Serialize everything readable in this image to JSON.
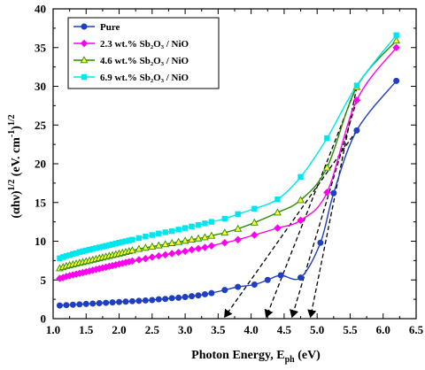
{
  "chart_data": {
    "type": "line",
    "xlabel": "Photon Energy, E",
    "xlabel_sub": "ph",
    "xlabel_unit": " (eV)",
    "ylabel": "(αhν)",
    "ylabel_sup": "1/2",
    "ylabel_unit": " (eV. cm",
    "ylabel_unit_sup": "-1",
    "ylabel_close": ")",
    "ylabel_close_sup": "1/2",
    "xlim": [
      1.0,
      6.5
    ],
    "ylim": [
      0,
      40
    ],
    "xticks": [
      "1.0",
      "1.5",
      "2.0",
      "2.5",
      "3.0",
      "3.5",
      "4.0",
      "4.5",
      "5.0",
      "5.5",
      "6.0",
      "6.5"
    ],
    "yticks": [
      "0",
      "5",
      "10",
      "15",
      "20",
      "25",
      "30",
      "35",
      "40"
    ],
    "legend_position": "top-left",
    "series": [
      {
        "name": "Pure",
        "color": "#1f3fbf",
        "marker": "circle",
        "x": [
          1.1,
          1.2,
          1.3,
          1.4,
          1.5,
          1.6,
          1.7,
          1.8,
          1.9,
          2.0,
          2.1,
          2.2,
          2.3,
          2.4,
          2.5,
          2.6,
          2.7,
          2.8,
          2.9,
          3.0,
          3.1,
          3.2,
          3.3,
          3.4,
          3.6,
          3.8,
          4.05,
          4.25,
          4.45,
          4.75,
          5.05,
          5.25,
          5.6,
          6.2
        ],
        "y": [
          1.7,
          1.75,
          1.8,
          1.85,
          1.9,
          1.95,
          2.0,
          2.05,
          2.1,
          2.15,
          2.2,
          2.25,
          2.3,
          2.35,
          2.4,
          2.5,
          2.55,
          2.65,
          2.7,
          2.8,
          2.9,
          3.0,
          3.15,
          3.3,
          3.7,
          4.1,
          4.4,
          5.0,
          5.6,
          5.3,
          9.8,
          16.2,
          24.3,
          30.7
        ]
      },
      {
        "name": "2.3 wt.% Sb₂O₃ / NiO",
        "color": "#ff00ee",
        "marker": "diamond",
        "x": [
          1.1,
          1.15,
          1.2,
          1.25,
          1.3,
          1.35,
          1.4,
          1.45,
          1.5,
          1.55,
          1.6,
          1.65,
          1.7,
          1.75,
          1.8,
          1.85,
          1.9,
          1.95,
          2.0,
          2.05,
          2.1,
          2.15,
          2.2,
          2.3,
          2.4,
          2.5,
          2.6,
          2.7,
          2.8,
          2.9,
          3.0,
          3.1,
          3.2,
          3.3,
          3.4,
          3.6,
          3.8,
          4.05,
          4.4,
          4.75,
          5.15,
          5.6,
          6.2
        ],
        "y": [
          5.2,
          5.3,
          5.45,
          5.55,
          5.65,
          5.75,
          5.85,
          5.95,
          6.05,
          6.15,
          6.25,
          6.35,
          6.45,
          6.55,
          6.65,
          6.75,
          6.85,
          6.95,
          7.05,
          7.15,
          7.25,
          7.35,
          7.45,
          7.6,
          7.75,
          7.95,
          8.1,
          8.25,
          8.4,
          8.55,
          8.7,
          8.9,
          9.05,
          9.2,
          9.4,
          9.8,
          10.2,
          10.8,
          11.7,
          12.7,
          16.3,
          28.2,
          35.0
        ]
      },
      {
        "name": "4.6 wt.% Sb₂O₃ / NiO",
        "color": "#2a8a00",
        "marker": "triangle",
        "marker_fill": "#ffff33",
        "x": [
          1.1,
          1.15,
          1.2,
          1.25,
          1.3,
          1.35,
          1.4,
          1.45,
          1.5,
          1.55,
          1.6,
          1.65,
          1.7,
          1.75,
          1.8,
          1.85,
          1.9,
          1.95,
          2.0,
          2.05,
          2.1,
          2.15,
          2.2,
          2.3,
          2.4,
          2.5,
          2.6,
          2.7,
          2.8,
          2.9,
          3.0,
          3.1,
          3.2,
          3.3,
          3.4,
          3.6,
          3.8,
          4.05,
          4.4,
          4.75,
          5.15,
          5.6,
          6.2
        ],
        "y": [
          6.5,
          6.65,
          6.8,
          6.9,
          7.0,
          7.1,
          7.2,
          7.3,
          7.4,
          7.5,
          7.6,
          7.7,
          7.8,
          7.9,
          8.0,
          8.1,
          8.2,
          8.3,
          8.4,
          8.5,
          8.6,
          8.7,
          8.8,
          9.0,
          9.15,
          9.3,
          9.45,
          9.6,
          9.75,
          9.9,
          10.05,
          10.2,
          10.35,
          10.5,
          10.7,
          11.1,
          11.6,
          12.4,
          13.7,
          15.3,
          19.5,
          29.9,
          35.9
        ]
      },
      {
        "name": "6.9 wt.% Sb₂O₃ / NiO",
        "color": "#00e5ee",
        "marker": "square",
        "x": [
          1.1,
          1.15,
          1.2,
          1.25,
          1.3,
          1.35,
          1.4,
          1.45,
          1.5,
          1.55,
          1.6,
          1.65,
          1.7,
          1.75,
          1.8,
          1.85,
          1.9,
          1.95,
          2.0,
          2.05,
          2.1,
          2.15,
          2.2,
          2.3,
          2.4,
          2.5,
          2.6,
          2.7,
          2.8,
          2.9,
          3.0,
          3.1,
          3.2,
          3.3,
          3.4,
          3.6,
          3.8,
          4.05,
          4.4,
          4.75,
          5.15,
          5.6,
          6.2
        ],
        "y": [
          7.8,
          7.95,
          8.1,
          8.2,
          8.35,
          8.45,
          8.6,
          8.7,
          8.8,
          8.9,
          9.0,
          9.1,
          9.2,
          9.3,
          9.4,
          9.5,
          9.6,
          9.7,
          9.8,
          9.9,
          10.0,
          10.1,
          10.2,
          10.4,
          10.6,
          10.8,
          11.0,
          11.15,
          11.3,
          11.5,
          11.7,
          11.9,
          12.1,
          12.3,
          12.5,
          12.9,
          13.5,
          14.2,
          15.4,
          18.3,
          23.3,
          30.1,
          36.6
        ]
      }
    ],
    "tangent_lines": [
      {
        "x": [
          5.6,
          3.6
        ],
        "y": [
          24.3,
          0
        ]
      },
      {
        "x": [
          5.6,
          4.23
        ],
        "y": [
          30.1,
          0
        ]
      },
      {
        "x": [
          5.6,
          4.62
        ],
        "y": [
          28.2,
          0
        ]
      },
      {
        "x": [
          5.6,
          4.9
        ],
        "y": [
          29.9,
          0
        ]
      }
    ]
  }
}
